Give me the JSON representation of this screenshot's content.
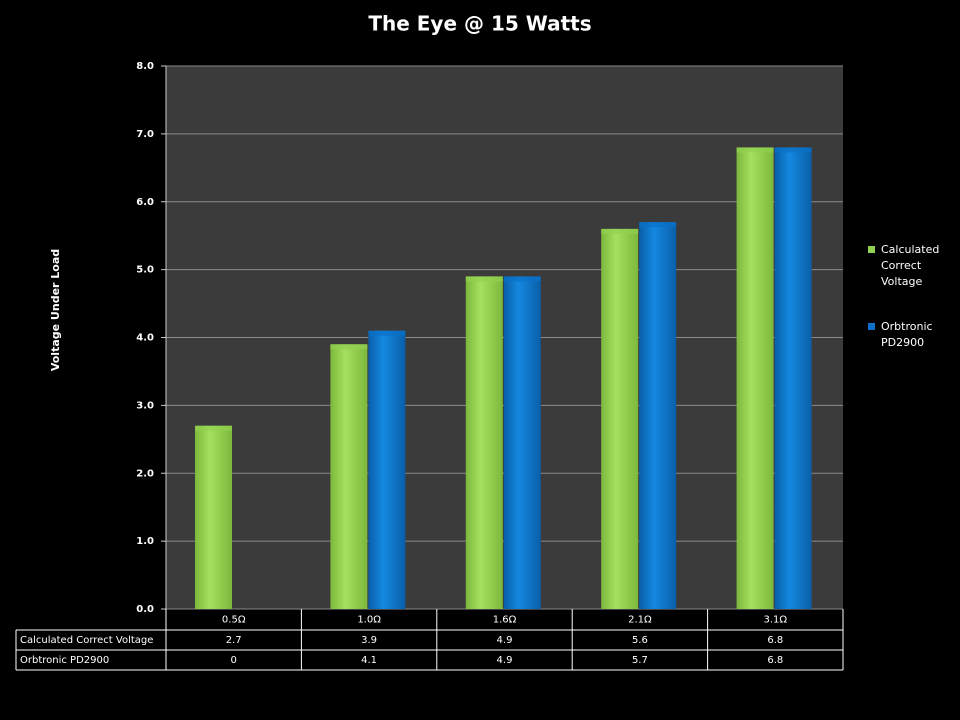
{
  "chart_data": {
    "type": "bar",
    "title": "The Eye @ 15 Watts",
    "y_label": "Voltage Under Load",
    "categories": [
      "0.5Ω",
      "1.0Ω",
      "1.6Ω",
      "2.1Ω",
      "3.1Ω"
    ],
    "series": [
      {
        "name": "Calculated Correct Voltage",
        "color": "#92d050",
        "values": [
          2.7,
          3.9,
          4.9,
          5.6,
          6.8
        ]
      },
      {
        "name": "Orbtronic PD2900",
        "color": "#0a70c8",
        "values": [
          0,
          4.1,
          4.9,
          5.7,
          6.8
        ]
      }
    ],
    "ylim": [
      0,
      8
    ],
    "yticks": [
      {
        "value": 0,
        "label": "0.0"
      },
      {
        "value": 1,
        "label": "1.0"
      },
      {
        "value": 2,
        "label": "2.0"
      },
      {
        "value": 3,
        "label": "3.0"
      },
      {
        "value": 4,
        "label": "4.0"
      },
      {
        "value": 5,
        "label": "5.0"
      },
      {
        "value": 6,
        "label": "6.0"
      },
      {
        "value": 7,
        "label": "7.0"
      },
      {
        "value": 8,
        "label": "8.0"
      }
    ],
    "grid": true,
    "legend": "right",
    "data_table": true
  }
}
